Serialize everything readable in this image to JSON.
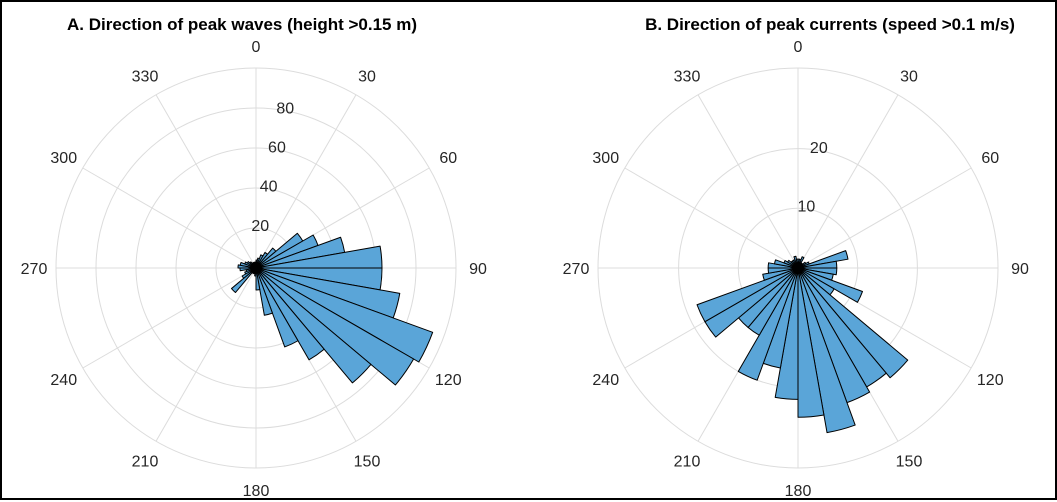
{
  "chart_data": [
    {
      "type": "polar-histogram",
      "title": "A. Direction of peak waves (height >0.15 m)",
      "theta_zero": "top",
      "theta_direction": "clockwise",
      "angle_ticks": [
        "0",
        "30",
        "60",
        "90",
        "120",
        "150",
        "180",
        "210",
        "240",
        "270",
        "300",
        "330"
      ],
      "radial_ticks": [
        20,
        40,
        60,
        80
      ],
      "rlim": [
        0,
        100
      ],
      "bin_width_deg": 10,
      "bar_color": "#5aa5d8",
      "edge_color": "#000000",
      "bins": [
        {
          "direction": 5,
          "value": 4
        },
        {
          "direction": 15,
          "value": 5
        },
        {
          "direction": 25,
          "value": 7
        },
        {
          "direction": 35,
          "value": 9
        },
        {
          "direction": 45,
          "value": 13
        },
        {
          "direction": 55,
          "value": 27
        },
        {
          "direction": 65,
          "value": 33
        },
        {
          "direction": 75,
          "value": 45
        },
        {
          "direction": 85,
          "value": 63
        },
        {
          "direction": 95,
          "value": 63
        },
        {
          "direction": 105,
          "value": 73
        },
        {
          "direction": 115,
          "value": 94
        },
        {
          "direction": 125,
          "value": 91
        },
        {
          "direction": 135,
          "value": 75
        },
        {
          "direction": 145,
          "value": 53
        },
        {
          "direction": 155,
          "value": 42
        },
        {
          "direction": 165,
          "value": 24
        },
        {
          "direction": 175,
          "value": 11
        },
        {
          "direction": 185,
          "value": 4
        },
        {
          "direction": 195,
          "value": 3
        },
        {
          "direction": 205,
          "value": 3
        },
        {
          "direction": 215,
          "value": 3
        },
        {
          "direction": 225,
          "value": 16
        },
        {
          "direction": 235,
          "value": 8
        },
        {
          "direction": 245,
          "value": 6
        },
        {
          "direction": 255,
          "value": 5
        },
        {
          "direction": 265,
          "value": 8
        },
        {
          "direction": 275,
          "value": 9
        },
        {
          "direction": 285,
          "value": 8
        },
        {
          "direction": 295,
          "value": 6
        },
        {
          "direction": 305,
          "value": 5
        },
        {
          "direction": 315,
          "value": 4
        },
        {
          "direction": 325,
          "value": 3
        },
        {
          "direction": 335,
          "value": 3
        },
        {
          "direction": 345,
          "value": 3
        },
        {
          "direction": 355,
          "value": 3
        }
      ]
    },
    {
      "type": "polar-histogram",
      "title": "B. Direction of peak currents (speed >0.1 m/s)",
      "theta_zero": "top",
      "theta_direction": "clockwise",
      "angle_ticks": [
        "0",
        "30",
        "60",
        "90",
        "120",
        "150",
        "180",
        "210",
        "240",
        "270",
        "300",
        "330"
      ],
      "radial_ticks": [
        10,
        20
      ],
      "rlim": [
        0,
        33.5
      ],
      "bin_width_deg": 10,
      "bar_color": "#5aa5d8",
      "edge_color": "#000000",
      "bins": [
        {
          "direction": 5,
          "value": 1.5
        },
        {
          "direction": 15,
          "value": 1.5
        },
        {
          "direction": 25,
          "value": 2
        },
        {
          "direction": 35,
          "value": 1
        },
        {
          "direction": 45,
          "value": 1
        },
        {
          "direction": 55,
          "value": 1.5
        },
        {
          "direction": 65,
          "value": 2
        },
        {
          "direction": 75,
          "value": 8.5
        },
        {
          "direction": 85,
          "value": 6.5
        },
        {
          "direction": 95,
          "value": 6.5
        },
        {
          "direction": 105,
          "value": 6
        },
        {
          "direction": 115,
          "value": 11.5
        },
        {
          "direction": 125,
          "value": 7
        },
        {
          "direction": 135,
          "value": 24
        },
        {
          "direction": 145,
          "value": 23
        },
        {
          "direction": 155,
          "value": 24
        },
        {
          "direction": 165,
          "value": 28
        },
        {
          "direction": 175,
          "value": 25
        },
        {
          "direction": 185,
          "value": 22
        },
        {
          "direction": 195,
          "value": 17
        },
        {
          "direction": 205,
          "value": 20
        },
        {
          "direction": 215,
          "value": 13
        },
        {
          "direction": 225,
          "value": 13
        },
        {
          "direction": 235,
          "value": 18
        },
        {
          "direction": 245,
          "value": 18
        },
        {
          "direction": 255,
          "value": 6
        },
        {
          "direction": 265,
          "value": 5
        },
        {
          "direction": 275,
          "value": 5
        },
        {
          "direction": 285,
          "value": 4
        },
        {
          "direction": 295,
          "value": 2.5
        },
        {
          "direction": 305,
          "value": 2
        },
        {
          "direction": 315,
          "value": 1.5
        },
        {
          "direction": 325,
          "value": 1.5
        },
        {
          "direction": 335,
          "value": 1.5
        },
        {
          "direction": 345,
          "value": 2
        },
        {
          "direction": 355,
          "value": 1.5
        }
      ]
    }
  ],
  "colors": {
    "grid": "#dcdcdc",
    "bar": "#5aa5d8",
    "edge": "#000000",
    "text": "#262626"
  }
}
